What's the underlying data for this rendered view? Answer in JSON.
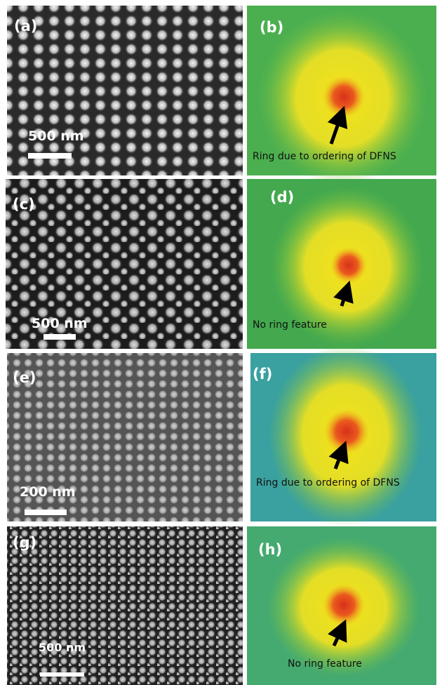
{
  "panels": [
    {
      "label": "(a)",
      "scale_bar": "500 nm"
    },
    {
      "label": "(b)",
      "annotation": "Ring due to ordering of DFNS"
    },
    {
      "label": "(c)",
      "scale_bar": "500 nm"
    },
    {
      "label": "(d)",
      "annotation": "No ring feature"
    },
    {
      "label": "(e)",
      "scale_bar": "200 nm"
    },
    {
      "label": "(f)",
      "annotation": "Ring due to ordering of DFNS"
    },
    {
      "label": "(g)",
      "scale_bar": "500 nm"
    },
    {
      "label": "(h)",
      "annotation": "No ring feature"
    }
  ]
}
